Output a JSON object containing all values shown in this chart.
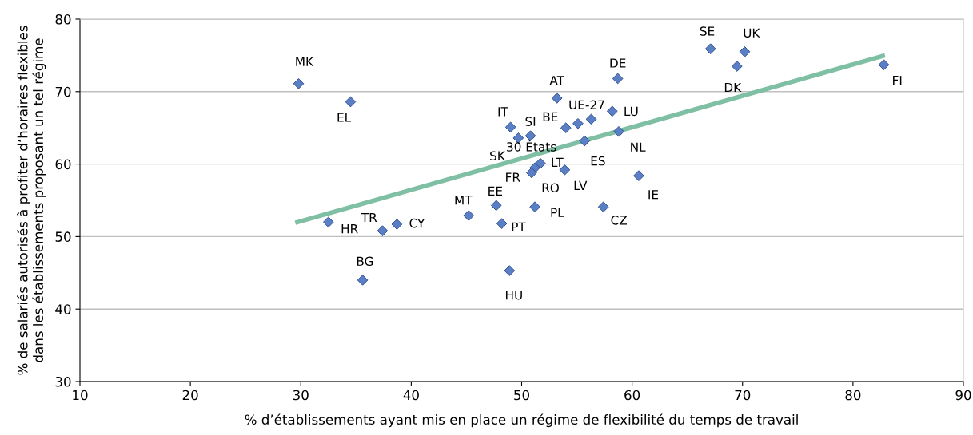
{
  "chart_data": {
    "type": "scatter",
    "xlabel": "% d’établissements ayant mis en place un régime de flexibilité du temps de travail",
    "ylabel": "% de salariés autorisés à profiter d’horaires flexibles\ndans les établissements proposant un tel régime",
    "xlim": [
      10,
      90
    ],
    "xticks": [
      10,
      20,
      30,
      40,
      50,
      60,
      70,
      80,
      90
    ],
    "ylim": [
      30,
      80
    ],
    "yticks": [
      30,
      40,
      50,
      60,
      70,
      80
    ],
    "grid": "y",
    "series": [
      {
        "marker": "diamond",
        "color": "#5b7fc4",
        "x": [
          29.8,
          34.5,
          32.5,
          37.4,
          38.7,
          35.6,
          53.2,
          58.7,
          49.0,
          49.7,
          50.8,
          54.0,
          56.3,
          55.1,
          58.2,
          58.8,
          55.7,
          51.7,
          51.2,
          50.9,
          53.9,
          60.6,
          47.7,
          45.2,
          51.2,
          57.4,
          48.2,
          48.9,
          67.1,
          70.2,
          69.5,
          82.8
        ],
        "values": [
          71.1,
          68.6,
          52.0,
          50.8,
          51.7,
          44.0,
          69.1,
          71.8,
          65.1,
          63.6,
          63.9,
          65.0,
          66.2,
          65.6,
          67.3,
          64.5,
          63.2,
          60.1,
          59.5,
          58.8,
          59.2,
          58.4,
          54.3,
          52.9,
          54.1,
          54.1,
          51.8,
          45.3,
          75.9,
          75.5,
          73.5,
          73.7
        ]
      },
      {
        "type": "line",
        "color": "#7fbfa4",
        "x": [
          29.5,
          82.9
        ],
        "values": [
          51.9,
          75.0
        ]
      }
    ],
    "annotations": [
      {
        "text": "MK",
        "x": 29.8,
        "y": 71.1
      },
      {
        "text": "EL",
        "x": 34.5,
        "y": 68.6
      },
      {
        "text": "HR",
        "x": 32.5,
        "y": 52.0
      },
      {
        "text": "TR",
        "x": 37.4,
        "y": 50.8
      },
      {
        "text": "CY",
        "x": 38.7,
        "y": 51.7
      },
      {
        "text": "BG",
        "x": 35.6,
        "y": 44.0
      },
      {
        "text": "AT",
        "x": 53.2,
        "y": 69.1
      },
      {
        "text": "DE",
        "x": 58.7,
        "y": 71.8
      },
      {
        "text": "IT",
        "x": 49.0,
        "y": 65.1
      },
      {
        "text": "SK",
        "x": 49.7,
        "y": 63.6
      },
      {
        "text": "SI",
        "x": 50.8,
        "y": 63.9
      },
      {
        "text": "BE",
        "x": 54.0,
        "y": 65.0
      },
      {
        "text": "UE-27",
        "x": 56.3,
        "y": 66.2
      },
      {
        "text": "30 États",
        "x": 55.1,
        "y": 65.6
      },
      {
        "text": "LU",
        "x": 58.2,
        "y": 67.3
      },
      {
        "text": "NL",
        "x": 58.8,
        "y": 64.5
      },
      {
        "text": "ES",
        "x": 55.7,
        "y": 63.2
      },
      {
        "text": "LT",
        "x": 51.7,
        "y": 60.1
      },
      {
        "text": "RO",
        "x": 51.2,
        "y": 59.5
      },
      {
        "text": "FR",
        "x": 50.9,
        "y": 58.8
      },
      {
        "text": "LV",
        "x": 53.9,
        "y": 59.2
      },
      {
        "text": "IE",
        "x": 60.6,
        "y": 58.4
      },
      {
        "text": "EE",
        "x": 47.7,
        "y": 54.3
      },
      {
        "text": "MT",
        "x": 45.2,
        "y": 52.9
      },
      {
        "text": "PL",
        "x": 51.2,
        "y": 54.1
      },
      {
        "text": "CZ",
        "x": 57.4,
        "y": 54.1
      },
      {
        "text": "PT",
        "x": 48.2,
        "y": 51.8
      },
      {
        "text": "HU",
        "x": 48.9,
        "y": 45.3
      },
      {
        "text": "SE",
        "x": 67.1,
        "y": 75.9
      },
      {
        "text": "UK",
        "x": 70.2,
        "y": 75.5
      },
      {
        "text": "DK",
        "x": 69.5,
        "y": 73.5
      },
      {
        "text": "FI",
        "x": 82.8,
        "y": 73.7
      }
    ]
  }
}
